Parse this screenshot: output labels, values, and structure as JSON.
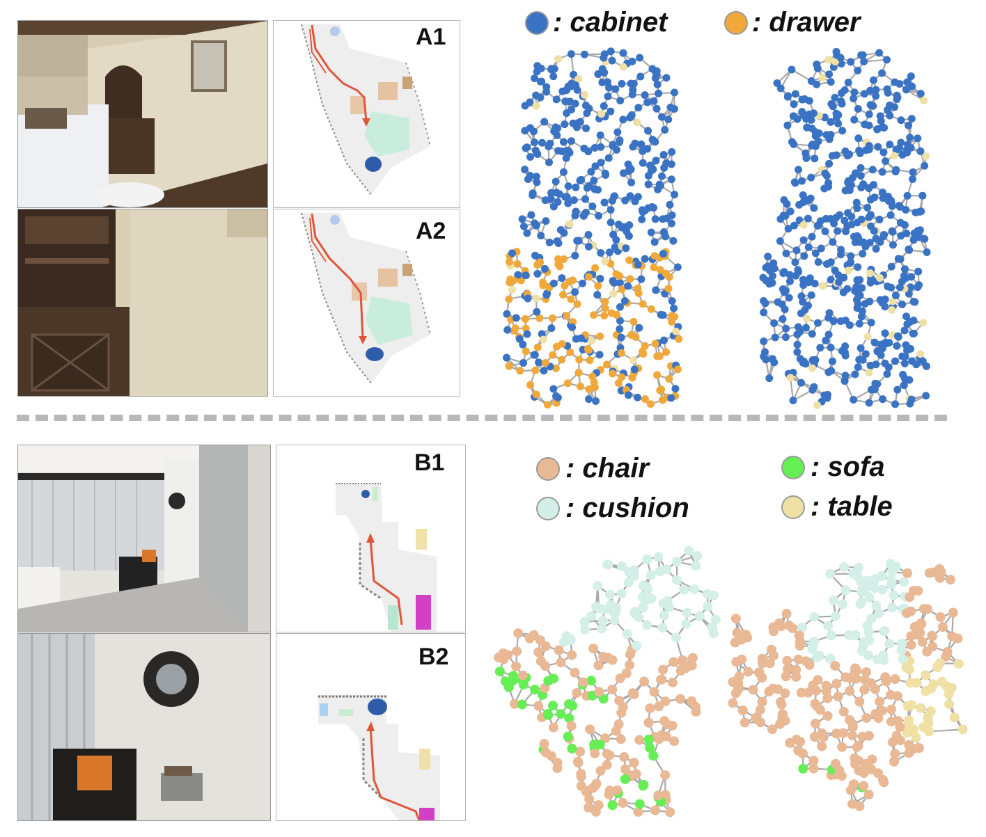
{
  "panels_top": {
    "label_1": "A1",
    "label_2": "A2"
  },
  "panels_bottom": {
    "label_1": "B1",
    "label_2": "B2"
  },
  "legend_top": [
    {
      "label": ": cabinet",
      "color": "#3a73c4"
    },
    {
      "label": ": drawer",
      "color": "#f0a83a"
    }
  ],
  "legend_bottom": [
    {
      "label": ": chair",
      "color": "#e9b895"
    },
    {
      "label": ": cushion",
      "color": "#d3efe8"
    },
    {
      "label": ": sofa",
      "color": "#66ee55"
    },
    {
      "label": ": table",
      "color": "#efe0a5"
    }
  ],
  "colors": {
    "edge": "#a8a8a8",
    "trajectory": "#e0553a",
    "cabinet": "#3a73c4",
    "drawer": "#f0a83a",
    "chair": "#e9b895",
    "cushion": "#d3efe8",
    "sofa": "#66ee55",
    "table": "#efe0a5"
  }
}
